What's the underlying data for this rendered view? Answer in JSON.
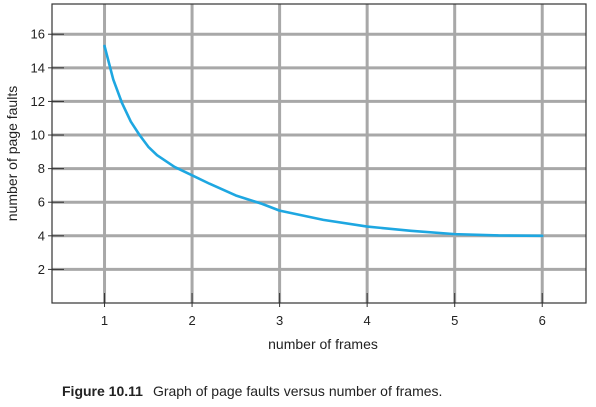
{
  "chart_data": {
    "type": "line",
    "xlabel": "number of frames",
    "ylabel": "number of page faults",
    "xlim": [
      0.4,
      6.5
    ],
    "ylim": [
      0,
      17.8
    ],
    "x_ticks": [
      1,
      2,
      3,
      4,
      5,
      6
    ],
    "y_ticks": [
      2,
      4,
      6,
      8,
      10,
      12,
      14,
      16
    ],
    "grid": true,
    "line_color": "#1ea7e1",
    "series": [
      {
        "x": [
          1.0,
          1.1,
          1.2,
          1.3,
          1.4,
          1.5,
          1.6,
          1.8,
          2.0,
          2.2,
          2.5,
          2.8,
          3.0,
          3.5,
          4.0,
          4.5,
          5.0,
          5.5,
          6.0
        ],
        "y": [
          15.3,
          13.3,
          11.9,
          10.8,
          10.0,
          9.3,
          8.8,
          8.1,
          7.6,
          7.1,
          6.4,
          5.9,
          5.5,
          4.95,
          4.55,
          4.3,
          4.1,
          4.02,
          4.0
        ]
      }
    ]
  },
  "caption": {
    "label": "Figure 10.11",
    "text": "Graph of page faults versus number of frames."
  }
}
